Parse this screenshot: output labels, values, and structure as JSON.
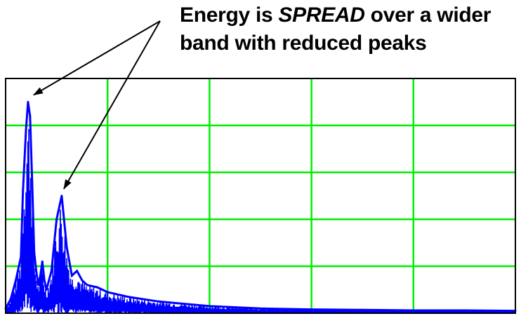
{
  "annotation": {
    "line1_before": "Energy is ",
    "line1_emphasis": "SPREAD",
    "line1_after": " over a wider",
    "line2": "band with reduced peaks"
  },
  "chart_data": {
    "type": "line",
    "title": "",
    "xlabel": "",
    "ylabel": "",
    "xlim": [
      0,
      5
    ],
    "ylim": [
      0,
      5
    ],
    "grid": true,
    "grid_color": "#00ee00",
    "frame_color": "#000000",
    "series": [
      {
        "color": "#0000ff",
        "x": [
          0.0,
          0.05,
          0.1,
          0.15,
          0.17,
          0.2,
          0.22,
          0.24,
          0.26,
          0.28,
          0.3,
          0.32,
          0.34,
          0.36,
          0.38,
          0.4,
          0.45,
          0.5,
          0.55,
          0.6,
          0.65,
          0.7,
          0.75,
          0.8,
          0.9,
          1.0,
          1.2,
          1.5,
          2.0,
          2.5,
          3.0,
          3.5,
          4.0,
          4.5,
          5.0
        ],
        "y": [
          0.1,
          0.3,
          0.7,
          1.2,
          2.6,
          3.9,
          4.5,
          4.2,
          2.8,
          1.3,
          0.9,
          0.6,
          0.8,
          1.1,
          0.7,
          0.5,
          0.9,
          2.0,
          2.5,
          1.4,
          0.8,
          0.9,
          0.7,
          0.6,
          0.55,
          0.45,
          0.35,
          0.25,
          0.15,
          0.1,
          0.08,
          0.07,
          0.06,
          0.06,
          0.05
        ]
      }
    ],
    "annotations": [
      {
        "text_ref": "annotation",
        "points_to": [
          0.22,
          4.5
        ]
      },
      {
        "text_ref": "annotation",
        "points_to": [
          0.53,
          2.5
        ]
      }
    ]
  }
}
